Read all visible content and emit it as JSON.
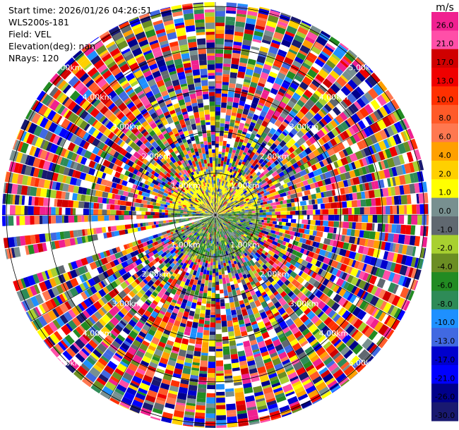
{
  "info": {
    "start_time": "Start time: 2026/01/26 04:26:51",
    "instrument": "WLS200s-181",
    "field": "Field: VEL",
    "elevation": "Elevation(deg): nan",
    "nrays": "NRays: 120"
  },
  "chart_data": {
    "type": "heatmap",
    "projection": "polar-ppi",
    "field": "VEL",
    "units": "m/s",
    "n_rays": 120,
    "range_rings_km": [
      1.0,
      2.0,
      3.0,
      4.0,
      5.0
    ],
    "ring_labels": [
      "1.00km",
      "2.00km",
      "3.00km",
      "4.00km",
      "5.00km"
    ],
    "max_range_km": 5.0,
    "missing_sectors_deg": [
      [
        252,
        258
      ],
      [
        263,
        267
      ]
    ],
    "colorbar": {
      "unit_label": "m/s",
      "ticks": [
        "26.0",
        "21.0",
        "17.0",
        "13.0",
        "10.0",
        "8.0",
        "6.0",
        "4.0",
        "2.0",
        "1.0",
        "0.0",
        "-1.0",
        "-2.0",
        "-4.0",
        "-6.0",
        "-8.0",
        "-10.0",
        "-13.0",
        "-17.0",
        "-21.0",
        "-26.0",
        "-30.0"
      ],
      "colors": [
        "#f02090",
        "#ff4fa8",
        "#d00000",
        "#f00000",
        "#ff3000",
        "#ff5a28",
        "#ff7850",
        "#ffa000",
        "#ffd000",
        "#ffff00",
        "#789090",
        "#606870",
        "#a8d030",
        "#6b8e23",
        "#228b22",
        "#2e8b57",
        "#1e90ff",
        "#4169e1",
        "#0000cd",
        "#0000ff",
        "#00008b",
        "#191970"
      ]
    },
    "grid": true
  }
}
